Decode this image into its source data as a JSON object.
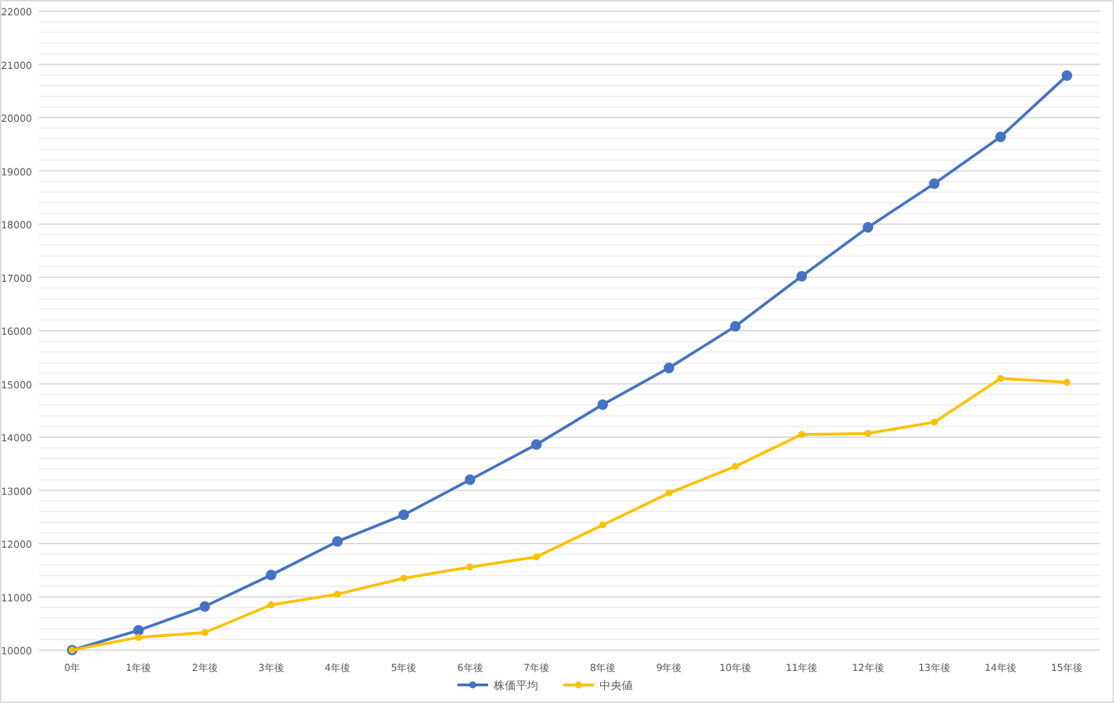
{
  "chart_data": {
    "type": "line",
    "categories": [
      "0年",
      "1年後",
      "2年後",
      "3年後",
      "4年後",
      "5年後",
      "6年後",
      "7年後",
      "8年後",
      "9年後",
      "10年後",
      "11年後",
      "12年後",
      "13年後",
      "14年後",
      "15年後"
    ],
    "series": [
      {
        "name": "株価平均",
        "color": "#4472c4",
        "values": [
          10000,
          10370,
          10820,
          11410,
          12040,
          12540,
          13200,
          13860,
          14610,
          15300,
          16080,
          17020,
          17940,
          18760,
          19640,
          20790
        ]
      },
      {
        "name": "中央値",
        "color": "#ffc000",
        "values": [
          10000,
          10240,
          10330,
          10850,
          11050,
          11350,
          11560,
          11750,
          12350,
          12950,
          13450,
          14050,
          14070,
          14280,
          15100,
          15030
        ]
      }
    ],
    "ylim": [
      10000,
      22000
    ],
    "yticks": [
      10000,
      {
        "value": 10200,
        "label": null
      },
      {
        "value": 10400,
        "label": null
      },
      {
        "value": 10600,
        "label": null
      },
      {
        "value": 10800,
        "label": null
      },
      11000,
      {
        "value": 11200,
        "label": null
      },
      {
        "value": 11400,
        "label": null
      },
      {
        "value": 11600,
        "label": null
      },
      {
        "value": 11800,
        "label": null
      },
      12000,
      {
        "value": 12200,
        "label": null
      },
      {
        "value": 12400,
        "label": null
      },
      {
        "value": 12600,
        "label": null
      },
      {
        "value": 12800,
        "label": null
      },
      13000,
      {
        "value": 13200,
        "label": null
      },
      {
        "value": 13400,
        "label": null
      },
      {
        "value": 13600,
        "label": null
      },
      {
        "value": 13800,
        "label": null
      },
      14000,
      {
        "value": 14200,
        "label": null
      },
      {
        "value": 14400,
        "label": null
      },
      {
        "value": 14600,
        "label": null
      },
      {
        "value": 14800,
        "label": null
      },
      15000,
      {
        "value": 15200,
        "label": null
      },
      {
        "value": 15400,
        "label": null
      },
      {
        "value": 15600,
        "label": null
      },
      {
        "value": 15800,
        "label": null
      },
      16000,
      {
        "value": 16200,
        "label": null
      },
      {
        "value": 16400,
        "label": null
      },
      {
        "value": 16600,
        "label": null
      },
      {
        "value": 16800,
        "label": null
      },
      17000,
      {
        "value": 17200,
        "label": null
      },
      {
        "value": 17400,
        "label": null
      },
      {
        "value": 17600,
        "label": null
      },
      {
        "value": 17800,
        "label": null
      },
      18000,
      {
        "value": 18200,
        "label": null
      },
      {
        "value": 18400,
        "label": null
      },
      {
        "value": 18600,
        "label": null
      },
      {
        "value": 18800,
        "label": null
      },
      19000,
      {
        "value": 19200,
        "label": null
      },
      {
        "value": 19400,
        "label": null
      },
      {
        "value": 19600,
        "label": null
      },
      {
        "value": 19800,
        "label": null
      },
      20000,
      {
        "value": 20200,
        "label": null
      },
      {
        "value": 20400,
        "label": null
      },
      {
        "value": 20600,
        "label": null
      },
      {
        "value": 20800,
        "label": null
      },
      21000,
      {
        "value": 21200,
        "label": null
      },
      {
        "value": 21400,
        "label": null
      },
      {
        "value": 21600,
        "label": null
      },
      {
        "value": 21800,
        "label": null
      },
      22000
    ],
    "grid": "y",
    "legend": "bottom",
    "marker": "circle",
    "line_style": "solid"
  }
}
